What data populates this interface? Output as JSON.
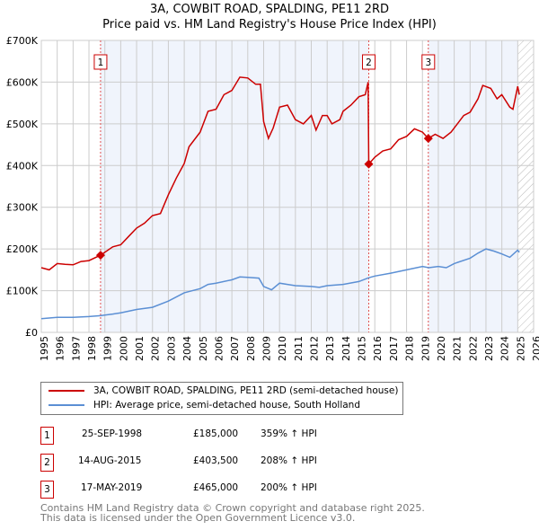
{
  "title": "3A, COWBIT ROAD, SPALDING, PE11 2RD",
  "subtitle": "Price paid vs. HM Land Registry's House Price Index (HPI)",
  "chart_data": {
    "type": "line",
    "title": "3A, COWBIT ROAD, SPALDING, PE11 2RD",
    "subtitle": "Price paid vs. HM Land Registry's House Price Index (HPI)",
    "xlim": [
      1995,
      2026
    ],
    "ylim": [
      0,
      700000
    ],
    "grid": true,
    "x_ticks": [
      "1995",
      "1996",
      "1997",
      "1998",
      "1999",
      "2000",
      "2001",
      "2002",
      "2003",
      "2004",
      "2005",
      "2006",
      "2007",
      "2008",
      "2009",
      "2010",
      "2011",
      "2012",
      "2013",
      "2014",
      "2015",
      "2016",
      "2017",
      "2018",
      "2019",
      "2020",
      "2021",
      "2022",
      "2023",
      "2024",
      "2025",
      "2026"
    ],
    "y_ticks": [
      {
        "v": 0,
        "label": "£0"
      },
      {
        "v": 100000,
        "label": "£100K"
      },
      {
        "v": 200000,
        "label": "£200K"
      },
      {
        "v": 300000,
        "label": "£300K"
      },
      {
        "v": 400000,
        "label": "£400K"
      },
      {
        "v": 500000,
        "label": "£500K"
      },
      {
        "v": 600000,
        "label": "£600K"
      },
      {
        "v": 700000,
        "label": "£700K"
      }
    ],
    "series": [
      {
        "name": "3A, COWBIT ROAD, SPALDING, PE11 2RD (semi-detached house)",
        "color": "#cc0000",
        "x": [
          1995,
          1995.5,
          1996,
          1996.5,
          1997,
          1997.5,
          1998,
          1998.73,
          1999.5,
          2000,
          2000.5,
          2001,
          2001.5,
          2002,
          2002.5,
          2003,
          2003.5,
          2004,
          2004.3,
          2005,
          2005.5,
          2006,
          2006.5,
          2007,
          2007.5,
          2008,
          2008.5,
          2008.8,
          2009,
          2009.3,
          2009.6,
          2010,
          2010.5,
          2011,
          2011.5,
          2012,
          2012.3,
          2012.7,
          2013,
          2013.3,
          2013.8,
          2014,
          2014.5,
          2015,
          2015.4,
          2015.58,
          2015.62,
          2016,
          2016.5,
          2017,
          2017.5,
          2018,
          2018.5,
          2019,
          2019.37,
          2019.8,
          2020.3,
          2020.8,
          2021.2,
          2021.6,
          2022,
          2022.5,
          2022.8,
          2023.3,
          2023.7,
          2024,
          2024.5,
          2024.7,
          2025,
          2025.1
        ],
        "y": [
          155000,
          150000,
          165000,
          163000,
          162000,
          170000,
          172000,
          185000,
          205000,
          210000,
          230000,
          250000,
          262000,
          280000,
          285000,
          330000,
          370000,
          405000,
          445000,
          480000,
          530000,
          535000,
          570000,
          580000,
          612000,
          610000,
          595000,
          595000,
          505000,
          465000,
          490000,
          540000,
          545000,
          510000,
          500000,
          520000,
          485000,
          520000,
          520000,
          500000,
          510000,
          530000,
          545000,
          565000,
          570000,
          600000,
          403500,
          420000,
          435000,
          440000,
          462000,
          470000,
          488000,
          480000,
          465000,
          475000,
          465000,
          480000,
          500000,
          520000,
          528000,
          560000,
          592000,
          585000,
          560000,
          570000,
          540000,
          535000,
          590000,
          570000
        ]
      },
      {
        "name": "HPI: Average price, semi-detached house, South Holland",
        "color": "#5b8fd4",
        "x": [
          1995,
          1996,
          1997,
          1998,
          1998.73,
          1999.5,
          2000,
          2001,
          2002,
          2003,
          2004,
          2005,
          2005.5,
          2006,
          2007,
          2007.5,
          2008,
          2008.7,
          2009,
          2009.5,
          2010,
          2010.5,
          2011,
          2012,
          2012.5,
          2013,
          2014,
          2015,
          2015.62,
          2016,
          2017,
          2018,
          2019,
          2019.4,
          2020,
          2020.5,
          2021,
          2022,
          2022.5,
          2023,
          2023.5,
          2024,
          2024.5,
          2025,
          2025.1
        ],
        "y": [
          33000,
          36000,
          36000,
          38000,
          40000,
          44000,
          47000,
          55000,
          60000,
          75000,
          95000,
          105000,
          115000,
          118000,
          126000,
          133000,
          132000,
          130000,
          110000,
          102000,
          118000,
          115000,
          112000,
          110000,
          108000,
          112000,
          115000,
          122000,
          131000,
          135000,
          142000,
          150000,
          158000,
          155000,
          158000,
          155000,
          165000,
          178000,
          190000,
          200000,
          195000,
          188000,
          180000,
          197000,
          192000
        ]
      }
    ],
    "sales": [
      {
        "id": "1",
        "x": 1998.73,
        "y": 185000,
        "date": "25-SEP-1998",
        "price": "£185,000",
        "hpi": "359% ↑ HPI"
      },
      {
        "id": "2",
        "x": 2015.62,
        "y": 403500,
        "date": "14-AUG-2015",
        "price": "£403,500",
        "hpi": "208% ↑ HPI"
      },
      {
        "id": "3",
        "x": 2019.37,
        "y": 465000,
        "date": "17-MAY-2019",
        "price": "£465,000",
        "hpi": "200% ↑ HPI"
      }
    ],
    "forecast_hatch_from": 2025.0,
    "legend_placement": "bottom"
  },
  "legend": {
    "property": "3A, COWBIT ROAD, SPALDING, PE11 2RD (semi-detached house)",
    "hpi": "HPI: Average price, semi-detached house, South Holland"
  },
  "footer": {
    "line1": "Contains HM Land Registry data © Crown copyright and database right 2025.",
    "line2": "This data is licensed under the Open Government Licence v3.0."
  }
}
